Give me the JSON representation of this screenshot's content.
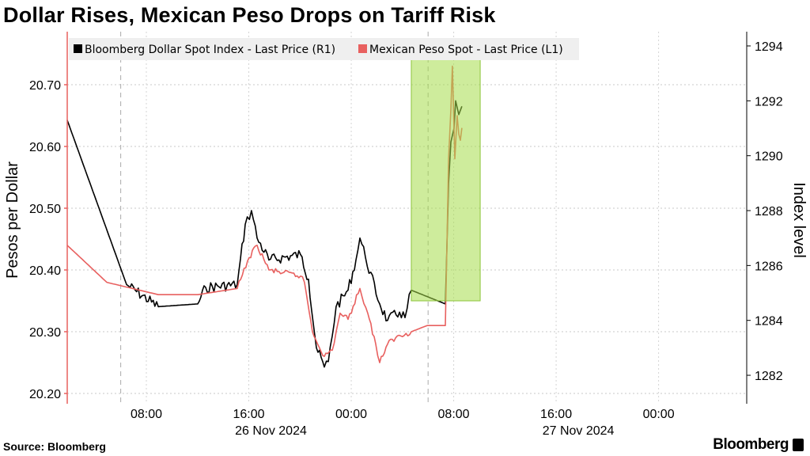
{
  "title": "Dollar Rises, Mexican Peso Drops on Tariff Risk",
  "source": "Source: Bloomberg",
  "brand": "Bloomberg",
  "chart_data": {
    "type": "line",
    "title": "Dollar Rises, Mexican Peso Drops on Tariff Risk",
    "x_unit": "hours since 26 Nov 2024 00:00",
    "xlim": [
      1.8,
      54.9
    ],
    "x_ticks": [
      {
        "x": 8,
        "label": "08:00"
      },
      {
        "x": 16,
        "label": "16:00"
      },
      {
        "x": 24,
        "label": "00:00"
      },
      {
        "x": 32,
        "label": "08:00"
      },
      {
        "x": 40,
        "label": "16:00"
      },
      {
        "x": 48,
        "label": "00:00"
      }
    ],
    "date_labels": [
      {
        "x": 16,
        "label": "26 Nov 2024"
      },
      {
        "x": 40,
        "label": "27 Nov 2024"
      }
    ],
    "session_lines": [
      6,
      30
    ],
    "left_axis": {
      "label": "Pesos per Dollar",
      "ylim": [
        20.19,
        20.79
      ],
      "ticks": [
        "20.20",
        "20.30",
        "20.40",
        "20.50",
        "20.60",
        "20.70"
      ]
    },
    "right_axis": {
      "label": "Index level",
      "ylim": [
        1281,
        1294.5
      ],
      "ticks": [
        "1282",
        "1284",
        "1286",
        "1288",
        "1290",
        "1292",
        "1294"
      ]
    },
    "grid": true,
    "legend_position": "top-left",
    "highlight": {
      "x": [
        28.69,
        34.07
      ],
      "y_left": [
        20.35,
        20.76
      ],
      "color": "#a6dc4a"
    },
    "series": [
      {
        "name": "Bloomberg Dollar Spot Index - Last Price (R1)",
        "axis": "right",
        "color": "#000000",
        "x": [
          1.82,
          6.46,
          8.93,
          12.01,
          12.63,
          15.1,
          15.72,
          16.21,
          16.65,
          17.57,
          20.04,
          20.66,
          21.28,
          21.9,
          22.21,
          22.82,
          23.75,
          24.37,
          24.68,
          25.11,
          26.22,
          26.84,
          27.77,
          28.2,
          28.69,
          31.35,
          31.6,
          31.78,
          32.03,
          32.15,
          32.4,
          32.64
        ],
        "values": [
          1291.3,
          1285.3,
          1284.5,
          1284.6,
          1285.2,
          1285.3,
          1287.5,
          1288.0,
          1287.0,
          1286.2,
          1286.4,
          1285.5,
          1283.0,
          1282.3,
          1282.5,
          1284.5,
          1285.1,
          1286.2,
          1287.0,
          1286.3,
          1284.6,
          1284.0,
          1284.3,
          1284.1,
          1285.1,
          1284.6,
          1289.0,
          1290.5,
          1291.0,
          1292.0,
          1291.5,
          1291.8
        ]
      },
      {
        "name": "Mexican Peso Spot - Last Price (L1)",
        "axis": "left",
        "color": "#e8605f",
        "x": [
          1.82,
          4.91,
          8.93,
          12.01,
          15.1,
          16.03,
          16.65,
          17.57,
          20.04,
          20.35,
          20.97,
          21.9,
          22.52,
          23.13,
          23.75,
          24.68,
          25.29,
          25.91,
          26.22,
          26.84,
          27.46,
          28.69,
          29.93,
          31.35,
          31.6,
          31.78,
          31.9,
          32.09,
          32.27,
          32.4,
          32.52,
          32.64
        ],
        "values": [
          20.44,
          20.38,
          20.36,
          20.36,
          20.37,
          20.42,
          20.44,
          20.4,
          20.39,
          20.38,
          20.3,
          20.26,
          20.27,
          20.33,
          20.32,
          20.37,
          20.33,
          20.28,
          20.25,
          20.28,
          20.29,
          20.3,
          20.31,
          20.31,
          20.58,
          20.66,
          20.73,
          20.58,
          20.65,
          20.62,
          20.61,
          20.63
        ]
      }
    ]
  }
}
